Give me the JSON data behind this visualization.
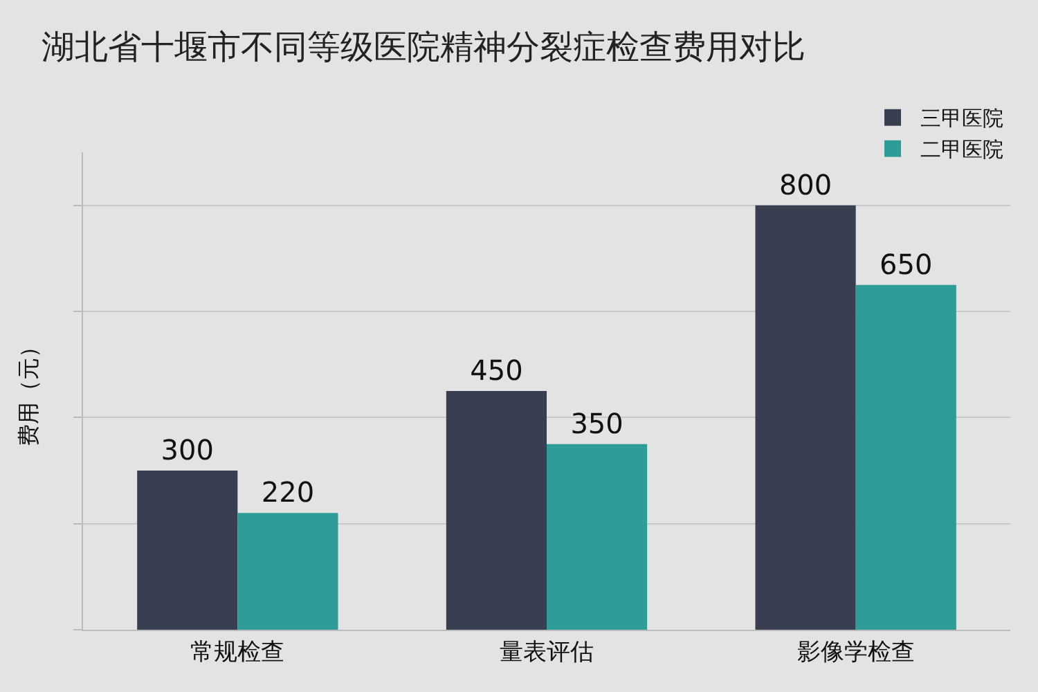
{
  "chart_data": {
    "type": "bar",
    "title": "湖北省十堰市不同等级医院精神分裂症检查费用对比",
    "ylabel": "费用（元）",
    "categories": [
      "常规检查",
      "量表评估",
      "影像学检查"
    ],
    "series": [
      {
        "name": "三甲医院",
        "color": "#373f50",
        "values": [
          300,
          450,
          800
        ]
      },
      {
        "name": "二甲医院",
        "color": "#2e9c97",
        "values": [
          220,
          350,
          650
        ]
      }
    ],
    "ylim": [
      0,
      900
    ],
    "yticks": [
      {
        "value": 0,
        "label": null
      },
      {
        "value": 200,
        "label": null
      },
      {
        "value": 400,
        "label": null
      },
      {
        "value": 600,
        "label": null
      },
      {
        "value": 800,
        "label": null
      }
    ],
    "grid": "y",
    "legend": "top right",
    "data_labels": true,
    "tick_labels": "x"
  }
}
